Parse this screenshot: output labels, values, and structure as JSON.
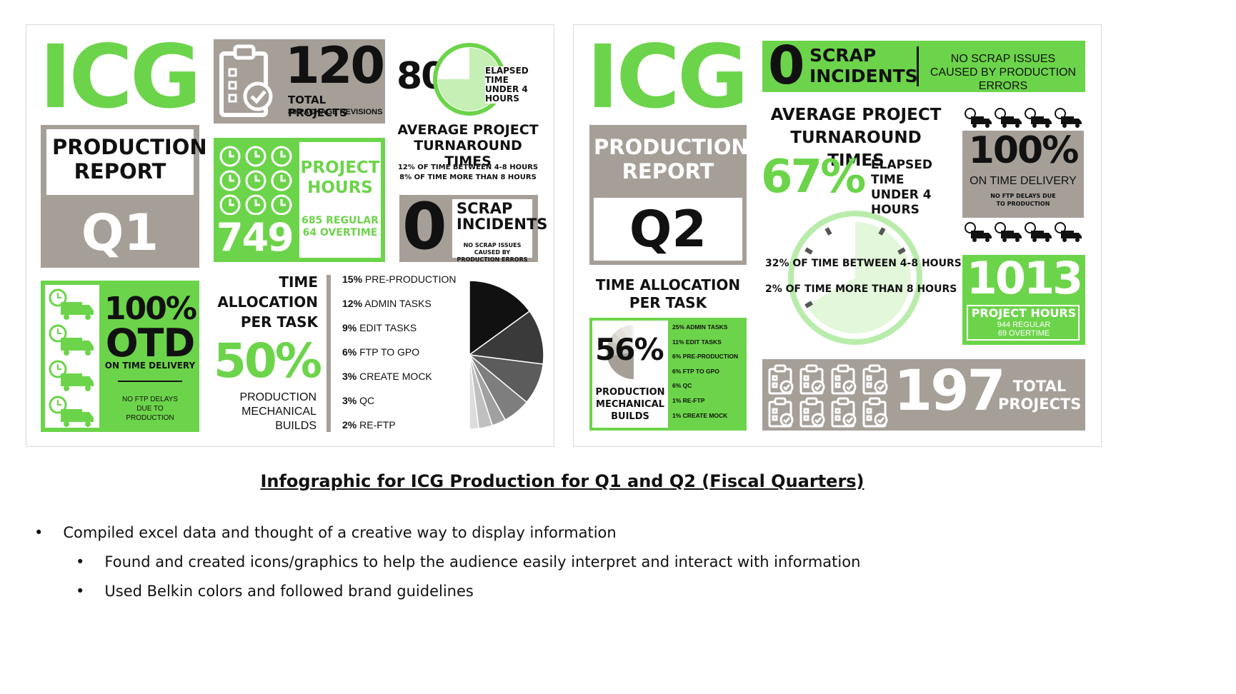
{
  "q1": {
    "logo": "ICG",
    "report_title": "PRODUCTION REPORT",
    "quarter": "Q1",
    "projects": {
      "value": "120",
      "label": "TOTAL PROJECTS",
      "sub": "80 PACKAGE REVISIONS"
    },
    "turnaround": {
      "percent": "80%",
      "elapsed": "ELAPSED TIME UNDER 4 HOURS",
      "title": "AVERAGE PROJECT TURNAROUND TIMES",
      "line1": "12% OF TIME BETWEEN 4-8 HOURS",
      "line2": "8% OF TIME MORE THAN 8 HOURS"
    },
    "hours": {
      "title": "PROJECT HOURS",
      "value": "749",
      "regular": "685 REGULAR",
      "overtime": "64 OVERTIME"
    },
    "scrap": {
      "value": "0",
      "title": "SCRAP INCIDENTS",
      "note": "NO SCRAP ISSUES CAUSED BY PRODUCTION ERRORS"
    },
    "otd": {
      "big1": "100%",
      "big2": "OTD",
      "label": "ON TIME DELIVERY",
      "note": "NO FTP DELAYS DUE TO PRODUCTION"
    },
    "allocation": {
      "title": "TIME ALLOCATION PER TASK",
      "percent": "50%",
      "caption": "PRODUCTION MECHANICAL BUILDS"
    },
    "tasks": [
      {
        "pct": "15%",
        "name": "PRE-PRODUCTION"
      },
      {
        "pct": "12%",
        "name": "ADMIN TASKS"
      },
      {
        "pct": "9%",
        "name": "EDIT TASKS"
      },
      {
        "pct": "6%",
        "name": "FTP TO GPO"
      },
      {
        "pct": "3%",
        "name": "CREATE MOCK"
      },
      {
        "pct": "3%",
        "name": "QC"
      },
      {
        "pct": "2%",
        "name": "RE-FTP"
      }
    ]
  },
  "q2": {
    "logo": "ICG",
    "scrap": {
      "value": "0",
      "title": "SCRAP INCIDENTS",
      "note": "NO SCRAP ISSUES CAUSED BY PRODUCTION ERRORS"
    },
    "report_title": "PRODUCTION REPORT",
    "quarter": "Q2",
    "turnaround": {
      "title": "AVERAGE PROJECT TURNAROUND TIMES",
      "percent": "67%",
      "elapsed": "ELAPSED TIME UNDER 4 HOURS",
      "line1": "32% OF TIME BETWEEN 4-8 HOURS",
      "line2": "2% OF TIME MORE THAN 8 HOURS"
    },
    "otd": {
      "value": "100%",
      "label": "ON TIME DELIVERY",
      "note": "NO FTP DELAYS DUE TO PRODUCTION"
    },
    "hours": {
      "value": "1013",
      "title": "PROJECT HOURS",
      "regular": "944 REGULAR",
      "overtime": "69 OVERTIME"
    },
    "allocation": {
      "title": "TIME ALLOCATION PER TASK",
      "percent": "56%",
      "caption": "PRODUCTION MECHANICAL BUILDS"
    },
    "tasks": [
      {
        "pct": "25%",
        "name": "ADMIN TASKS"
      },
      {
        "pct": "11%",
        "name": "EDIT TASKS"
      },
      {
        "pct": "6%",
        "name": "PRE-PRODUCTION"
      },
      {
        "pct": "6%",
        "name": "FTP TO GPO"
      },
      {
        "pct": "6%",
        "name": "QC"
      },
      {
        "pct": "1%",
        "name": "RE-FTP"
      },
      {
        "pct": "1%",
        "name": "CREATE MOCK"
      }
    ],
    "projects": {
      "value": "197",
      "label": "TOTAL PROJECTS"
    }
  },
  "caption": "Infographic for ICG Production for Q1 and Q2 (Fiscal Quarters)",
  "bullets": [
    "Compiled excel data and thought of a creative way to display information",
    "Found and created icons/graphics to help the audience easily interpret and interact with information",
    "Used Belkin colors and followed brand guidelines"
  ],
  "colors": {
    "green": "#6cd44a",
    "taupe": "#a59f98",
    "dark": "#111111"
  },
  "chart_data": [
    {
      "type": "pie",
      "title": "TIME ALLOCATION PER TASK",
      "categories": [
        "PRODUCTION MECHANICAL BUILDS",
        "PRE-PRODUCTION",
        "ADMIN TASKS",
        "EDIT TASKS",
        "FTP TO GPO",
        "CREATE MOCK",
        "QC",
        "RE-FTP"
      ],
      "values": [
        50,
        15,
        12,
        9,
        6,
        3,
        3,
        2
      ]
    },
    {
      "type": "pie",
      "title": "TIME ALLOCATION PER TASK",
      "categories": [
        "PRODUCTION MECHANICAL BUILDS",
        "ADMIN TASKS",
        "EDIT TASKS",
        "PRE-PRODUCTION",
        "FTP TO GPO",
        "QC",
        "RE-FTP",
        "CREATE MOCK"
      ],
      "values": [
        56,
        25,
        11,
        6,
        6,
        6,
        1,
        1
      ]
    }
  ]
}
